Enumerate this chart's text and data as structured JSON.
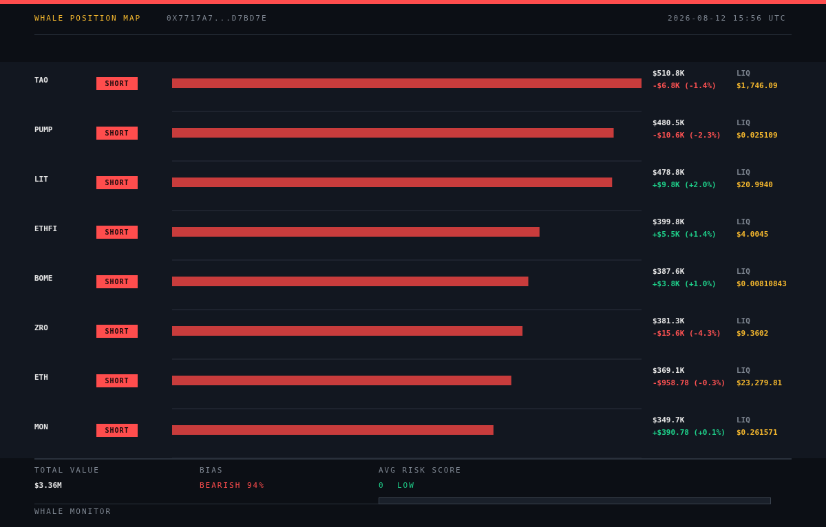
{
  "chart_data": {
    "type": "bar",
    "orientation": "horizontal",
    "title": "WHALE POSITION MAP",
    "subtitle": "0X7717A7...D7BD7E",
    "grid": "y",
    "categories": [
      "TAO",
      "PUMP",
      "LIT",
      "ETHFI",
      "BOME",
      "ZRO",
      "ETH",
      "MON"
    ],
    "series": [
      {
        "color": "#c83c3c",
        "values": [
          510.8,
          480.5,
          478.8,
          399.8,
          387.6,
          381.3,
          369.1,
          349.7
        ],
        "value_labels": [
          "$510.8K",
          "$480.5K",
          "$478.8K",
          "$399.8K",
          "$387.6K",
          "$381.3K",
          "$369.1K",
          "$349.7K"
        ]
      }
    ],
    "annotations": [
      "SHORT",
      "-$6.8K (-1.4%)",
      "LIQ",
      "$1,746.09",
      "SHORT",
      "-$10.6K (-2.3%)",
      "LIQ",
      "$0.025109",
      "SHORT",
      "+$9.8K (+2.0%)",
      "LIQ",
      "$20.9940",
      "SHORT",
      "+$5.5K (+1.4%)",
      "LIQ",
      "$4.0045",
      "SHORT",
      "+$3.8K (+1.0%)",
      "LIQ",
      "$0.00810843",
      "SHORT",
      "-$15.6K (-4.3%)",
      "LIQ",
      "$9.3602",
      "SHORT",
      "-$958.78 (-0.3%)",
      "LIQ",
      "$23,279.81",
      "SHORT",
      "+$390.78 (+0.1%)",
      "LIQ",
      "$0.261571",
      "2026-08-12 15:56 UTC",
      "TOTAL VALUE",
      "$3.36M",
      "BIAS",
      "BEARISH 94%",
      "AVG RISK SCORE",
      "0",
      "LOW",
      "WHALE MONITOR"
    ]
  }
}
